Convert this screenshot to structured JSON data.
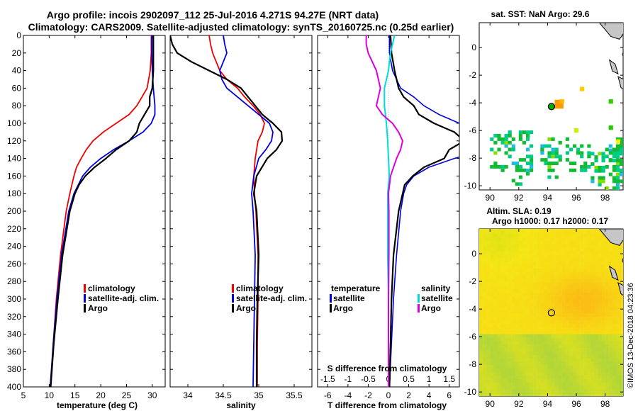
{
  "figure": {
    "title_line1": "Argo profile: incois 2902097_112 25-Jul-2016 4.271S 94.27E (NRT data)",
    "title_line2": "Climatology: CARS2009. Satellite-adjusted climatology: synTS_20160725.nc (0.25d earlier)",
    "side_stamp": "©IMOS 13-Dec-2018 04:23:36"
  },
  "colors": {
    "climatology": "#ee0000",
    "satellite": "#0000dd",
    "argo": "#000000",
    "sal_satellite": "#00dddd",
    "sal_argo": "#dd00dd"
  },
  "chart_data": [
    {
      "id": "temperature",
      "type": "line",
      "xlabel": "temperature (deg C)",
      "ylabel": "",
      "xlim": [
        5,
        32.5
      ],
      "ylim": [
        400,
        0
      ],
      "xticks": [
        "5",
        "10",
        "15",
        "20",
        "25",
        "30"
      ],
      "yticks": [
        "0",
        "20",
        "40",
        "60",
        "80",
        "100",
        "120",
        "140",
        "160",
        "180",
        "200",
        "220",
        "240",
        "260",
        "280",
        "300",
        "320",
        "340",
        "360",
        "380",
        "400"
      ],
      "legend": [
        "climatology",
        "satellite-adj. clim.",
        "Argo"
      ],
      "series": [
        {
          "name": "climatology",
          "depth": [
            0,
            20,
            40,
            60,
            70,
            80,
            90,
            100,
            110,
            120,
            130,
            140,
            150,
            160,
            180,
            200,
            250,
            300,
            350,
            400
          ],
          "values": [
            29.8,
            29.8,
            29.6,
            29.0,
            28.0,
            27.0,
            25.5,
            23.0,
            20.5,
            18.5,
            17.2,
            16.2,
            15.3,
            14.8,
            14.0,
            13.3,
            12.2,
            11.4,
            10.8,
            10.3
          ]
        },
        {
          "name": "satellite-adj. clim.",
          "depth": [
            0,
            20,
            40,
            60,
            80,
            90,
            100,
            110,
            120,
            130,
            140,
            150,
            160,
            180,
            200,
            250,
            300,
            350,
            400
          ],
          "values": [
            29.9,
            29.9,
            30.0,
            30.2,
            30.5,
            30.5,
            29.8,
            28.2,
            25.5,
            22.5,
            20.0,
            18.0,
            16.5,
            14.8,
            13.8,
            12.4,
            11.5,
            10.8,
            10.2
          ]
        },
        {
          "name": "Argo",
          "depth": [
            0,
            20,
            40,
            60,
            70,
            80,
            90,
            100,
            110,
            120,
            130,
            140,
            150,
            160,
            170,
            180,
            200,
            250,
            300,
            350,
            400
          ],
          "values": [
            30.2,
            30.2,
            30.2,
            30.0,
            29.5,
            29.5,
            28.5,
            27.5,
            27.0,
            25.5,
            23.0,
            21.0,
            18.8,
            17.0,
            15.8,
            15.0,
            14.0,
            12.6,
            11.7,
            10.9,
            10.3
          ]
        }
      ]
    },
    {
      "id": "salinity",
      "type": "line",
      "xlabel": "salinity",
      "ylabel": "",
      "xlim": [
        33.75,
        35.75
      ],
      "ylim": [
        400,
        0
      ],
      "xticks": [
        "34",
        "34.5",
        "35",
        "35.5"
      ],
      "legend": [
        "climatology",
        "satellite-adj. clim.",
        "Argo"
      ],
      "series": [
        {
          "name": "climatology",
          "depth": [
            0,
            10,
            20,
            30,
            40,
            50,
            60,
            70,
            80,
            90,
            100,
            110,
            120,
            130,
            140,
            160,
            180,
            200,
            250,
            300,
            350,
            400
          ],
          "values": [
            34.3,
            34.32,
            34.35,
            34.4,
            34.45,
            34.55,
            34.7,
            34.8,
            34.92,
            35.02,
            35.08,
            35.05,
            34.99,
            34.97,
            34.95,
            34.93,
            34.94,
            34.96,
            34.99,
            34.99,
            34.98,
            34.98
          ]
        },
        {
          "name": "satellite-adj. clim.",
          "depth": [
            0,
            10,
            20,
            30,
            40,
            50,
            60,
            70,
            80,
            90,
            100,
            110,
            120,
            130,
            140,
            160,
            180,
            200,
            250,
            300,
            350,
            400
          ],
          "values": [
            34.5,
            34.52,
            34.55,
            34.5,
            34.45,
            34.48,
            34.55,
            34.7,
            34.85,
            35.0,
            35.15,
            35.2,
            35.18,
            35.1,
            35.0,
            34.93,
            34.9,
            34.92,
            34.95,
            34.94,
            34.93,
            34.92
          ]
        },
        {
          "name": "Argo",
          "depth": [
            0,
            10,
            20,
            30,
            40,
            50,
            60,
            70,
            80,
            90,
            100,
            110,
            120,
            130,
            140,
            160,
            180,
            200,
            250,
            300,
            350,
            400
          ],
          "values": [
            33.75,
            33.78,
            33.85,
            34.05,
            34.3,
            34.55,
            34.75,
            34.85,
            34.95,
            35.05,
            35.2,
            35.32,
            35.33,
            35.25,
            35.12,
            34.97,
            34.93,
            34.97,
            35.0,
            34.98,
            34.97,
            34.97
          ]
        }
      ]
    },
    {
      "id": "differences",
      "type": "line",
      "xlabel": "T difference from climatology",
      "x2label": "S difference from climatology",
      "xlim": [
        -7,
        7
      ],
      "x2lim": [
        -1.75,
        1.75
      ],
      "ylim": [
        400,
        0
      ],
      "xticks": [
        "-6",
        "-4",
        "-2",
        "0",
        "2",
        "4",
        "6"
      ],
      "x2ticks": [
        "-1.5",
        "-1",
        "-0.5",
        "0",
        "0.5",
        "1",
        "1.5"
      ],
      "legend_left_title": "temperature",
      "legend_right_title": "salinity",
      "legend": [
        "satellite",
        "Argo"
      ],
      "series": [
        {
          "name": "T satellite",
          "axis": "T",
          "depth": [
            0,
            20,
            40,
            60,
            70,
            80,
            90,
            100,
            110,
            120,
            130,
            140,
            150,
            160,
            170,
            180,
            200,
            250,
            300,
            400
          ],
          "values": [
            0.1,
            0.1,
            0.4,
            1.2,
            2.5,
            3.5,
            5.0,
            7.0,
            8.5,
            10.0,
            9.5,
            6.5,
            4.0,
            2.5,
            1.8,
            1.5,
            1.2,
            0.8,
            0.5,
            0.1
          ]
        },
        {
          "name": "T Argo",
          "axis": "T",
          "depth": [
            0,
            20,
            40,
            60,
            70,
            80,
            90,
            100,
            110,
            120,
            130,
            140,
            150,
            160,
            170,
            180,
            200,
            250,
            300,
            400
          ],
          "values": [
            0.2,
            0.3,
            0.6,
            1.0,
            1.5,
            2.5,
            3.0,
            4.5,
            6.5,
            7.5,
            6.0,
            5.5,
            3.5,
            2.4,
            1.6,
            1.4,
            1.0,
            0.5,
            0.3,
            0.1
          ]
        },
        {
          "name": "S satellite",
          "axis": "S",
          "depth": [
            0,
            10,
            20,
            40,
            60,
            80,
            100,
            120,
            140,
            160,
            180,
            200,
            250,
            300,
            400
          ],
          "values": [
            0.15,
            0.1,
            0.05,
            0.0,
            -0.1,
            -0.1,
            -0.05,
            -0.02,
            0.0,
            0.02,
            -0.02,
            -0.02,
            -0.02,
            0.0,
            0.0
          ]
        },
        {
          "name": "S Argo",
          "axis": "S",
          "depth": [
            0,
            10,
            20,
            40,
            60,
            80,
            90,
            100,
            110,
            120,
            130,
            140,
            160,
            180,
            200,
            250,
            300,
            400
          ],
          "values": [
            -0.55,
            -0.55,
            -0.5,
            -0.3,
            -0.2,
            -0.3,
            -0.15,
            0.1,
            0.25,
            0.35,
            0.3,
            0.2,
            0.05,
            0.0,
            0.01,
            0.01,
            0.0,
            0.0
          ]
        }
      ]
    },
    {
      "id": "sst_map",
      "type": "heatmap",
      "title": "sat. SST: NaN Argo: 29.6",
      "xticks": [
        "90",
        "92",
        "94",
        "96",
        "98"
      ],
      "yticks": [
        "0",
        "-2",
        "-4",
        "-6",
        "-8",
        "-10"
      ],
      "xlim": [
        89.25,
        99.25
      ],
      "ylim": [
        -10.3,
        1.8
      ],
      "argo_position": [
        94.27,
        -4.271
      ]
    },
    {
      "id": "sla_map",
      "type": "heatmap",
      "title_line1": "Altim. SLA: 0.19",
      "title_line2": "Argo h1000: 0.17 h2000: 0.17",
      "xticks": [
        "90",
        "92",
        "94",
        "96",
        "98"
      ],
      "yticks": [
        "0",
        "-2",
        "-4",
        "-6",
        "-8",
        "-10"
      ],
      "xlim": [
        89.25,
        99.25
      ],
      "ylim": [
        -10.3,
        1.8
      ],
      "argo_position": [
        94.27,
        -4.271
      ]
    }
  ]
}
